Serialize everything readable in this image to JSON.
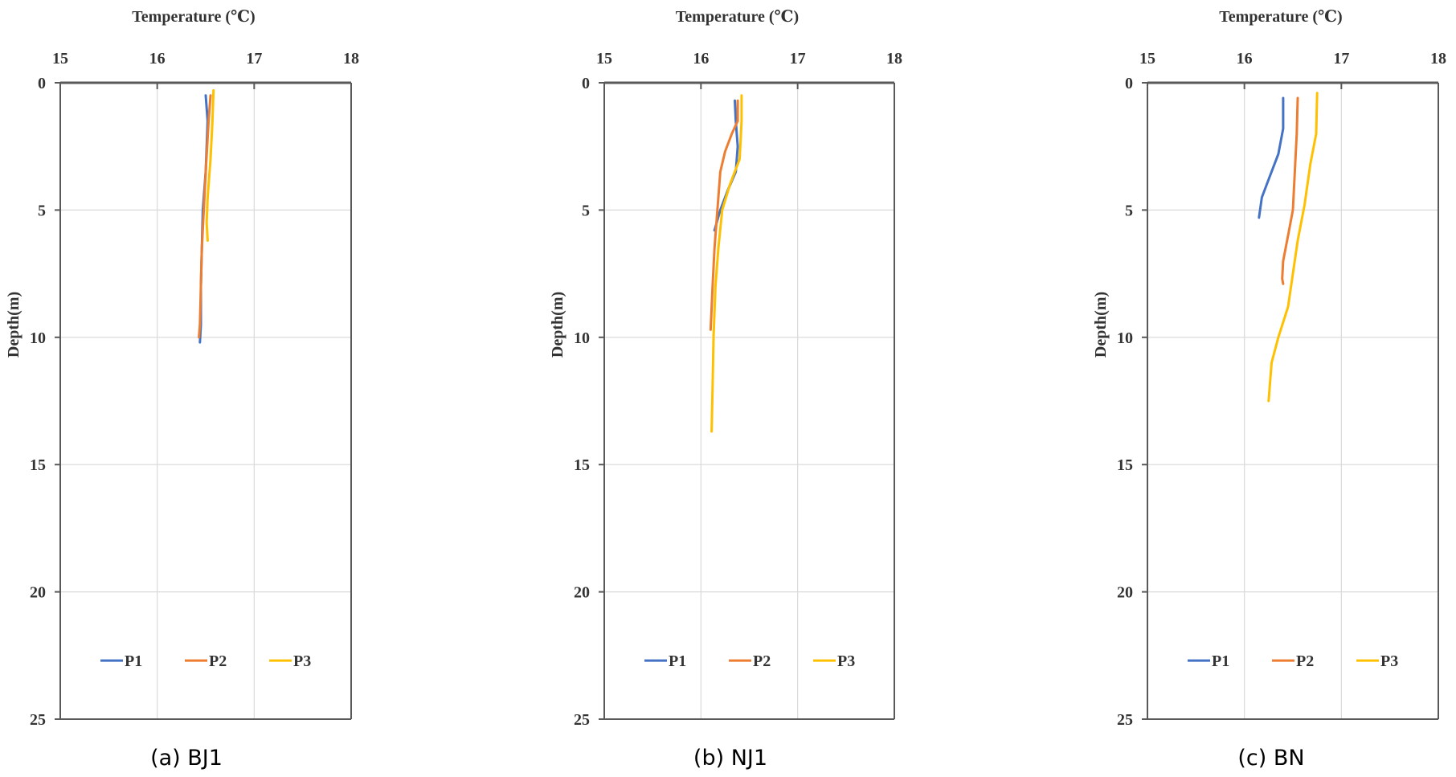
{
  "chart_data": [
    {
      "type": "line",
      "caption": "(a) BJ1",
      "xlabel": "Temperature (℃)",
      "ylabel": "Depth(m)",
      "xlim": [
        15,
        18
      ],
      "ylim": [
        0,
        25
      ],
      "y_inverted": true,
      "x_axis_position": "top",
      "xticks": [
        "15",
        "16",
        "17",
        "18"
      ],
      "yticks": [
        "0",
        "5",
        "10",
        "15",
        "20",
        "25"
      ],
      "grid": true,
      "legend": "bottom",
      "series": [
        {
          "name": "P1",
          "color": "#4472C4",
          "points": [
            [
              16.5,
              0.5
            ],
            [
              16.52,
              1.5
            ],
            [
              16.5,
              3.5
            ],
            [
              16.47,
              5.0
            ],
            [
              16.46,
              6.5
            ],
            [
              16.45,
              8.0
            ],
            [
              16.45,
              9.5
            ],
            [
              16.44,
              10.2
            ]
          ]
        },
        {
          "name": "P2",
          "color": "#ED7D31",
          "points": [
            [
              16.55,
              0.5
            ],
            [
              16.53,
              1.5
            ],
            [
              16.5,
              3.5
            ],
            [
              16.48,
              5.0
            ],
            [
              16.46,
              6.5
            ],
            [
              16.45,
              8.0
            ],
            [
              16.44,
              9.5
            ],
            [
              16.43,
              10.0
            ]
          ]
        },
        {
          "name": "P3",
          "color": "#FFC000",
          "points": [
            [
              16.58,
              0.3
            ],
            [
              16.57,
              1.5
            ],
            [
              16.55,
              3.0
            ],
            [
              16.52,
              4.5
            ],
            [
              16.51,
              5.5
            ],
            [
              16.52,
              6.2
            ]
          ]
        }
      ]
    },
    {
      "type": "line",
      "caption": "(b) NJ1",
      "xlabel": "Temperature (℃)",
      "ylabel": "Depth(m)",
      "xlim": [
        15,
        18
      ],
      "ylim": [
        0,
        25
      ],
      "y_inverted": true,
      "x_axis_position": "top",
      "xticks": [
        "15",
        "16",
        "17",
        "18"
      ],
      "yticks": [
        "0",
        "5",
        "10",
        "15",
        "20",
        "25"
      ],
      "grid": true,
      "legend": "bottom",
      "series": [
        {
          "name": "P1",
          "color": "#4472C4",
          "points": [
            [
              16.35,
              0.7
            ],
            [
              16.36,
              1.5
            ],
            [
              16.38,
              2.5
            ],
            [
              16.36,
              3.5
            ],
            [
              16.28,
              4.2
            ],
            [
              16.2,
              5.0
            ],
            [
              16.14,
              5.8
            ]
          ]
        },
        {
          "name": "P2",
          "color": "#ED7D31",
          "points": [
            [
              16.38,
              0.7
            ],
            [
              16.38,
              1.5
            ],
            [
              16.32,
              2.0
            ],
            [
              16.25,
              2.7
            ],
            [
              16.2,
              3.5
            ],
            [
              16.17,
              5.0
            ],
            [
              16.14,
              6.5
            ],
            [
              16.12,
              8.0
            ],
            [
              16.1,
              9.7
            ]
          ]
        },
        {
          "name": "P3",
          "color": "#FFC000",
          "points": [
            [
              16.42,
              0.5
            ],
            [
              16.42,
              1.5
            ],
            [
              16.4,
              3.0
            ],
            [
              16.3,
              4.0
            ],
            [
              16.22,
              5.0
            ],
            [
              16.18,
              6.5
            ],
            [
              16.15,
              8.0
            ],
            [
              16.13,
              10.0
            ],
            [
              16.12,
              12.0
            ],
            [
              16.11,
              13.7
            ]
          ]
        }
      ]
    },
    {
      "type": "line",
      "caption": "(c) BN",
      "xlabel": "Temperature (℃)",
      "ylabel": "Depth(m)",
      "xlim": [
        15,
        18
      ],
      "ylim": [
        0,
        25
      ],
      "y_inverted": true,
      "x_axis_position": "top",
      "xticks": [
        "15",
        "16",
        "17",
        "18"
      ],
      "yticks": [
        "0",
        "5",
        "10",
        "15",
        "20",
        "25"
      ],
      "grid": true,
      "legend": "bottom",
      "series": [
        {
          "name": "P1",
          "color": "#4472C4",
          "points": [
            [
              16.4,
              0.6
            ],
            [
              16.4,
              1.8
            ],
            [
              16.35,
              2.8
            ],
            [
              16.25,
              3.8
            ],
            [
              16.18,
              4.5
            ],
            [
              16.15,
              5.3
            ]
          ]
        },
        {
          "name": "P2",
          "color": "#ED7D31",
          "points": [
            [
              16.55,
              0.6
            ],
            [
              16.54,
              2.0
            ],
            [
              16.52,
              3.5
            ],
            [
              16.5,
              5.0
            ],
            [
              16.45,
              6.0
            ],
            [
              16.4,
              7.0
            ],
            [
              16.39,
              7.7
            ],
            [
              16.4,
              7.9
            ]
          ]
        },
        {
          "name": "P3",
          "color": "#FFC000",
          "points": [
            [
              16.75,
              0.4
            ],
            [
              16.74,
              2.0
            ],
            [
              16.68,
              3.2
            ],
            [
              16.62,
              4.8
            ],
            [
              16.55,
              6.2
            ],
            [
              16.5,
              7.5
            ],
            [
              16.45,
              8.8
            ],
            [
              16.35,
              10.0
            ],
            [
              16.28,
              11.0
            ],
            [
              16.25,
              12.5
            ]
          ]
        }
      ]
    }
  ]
}
